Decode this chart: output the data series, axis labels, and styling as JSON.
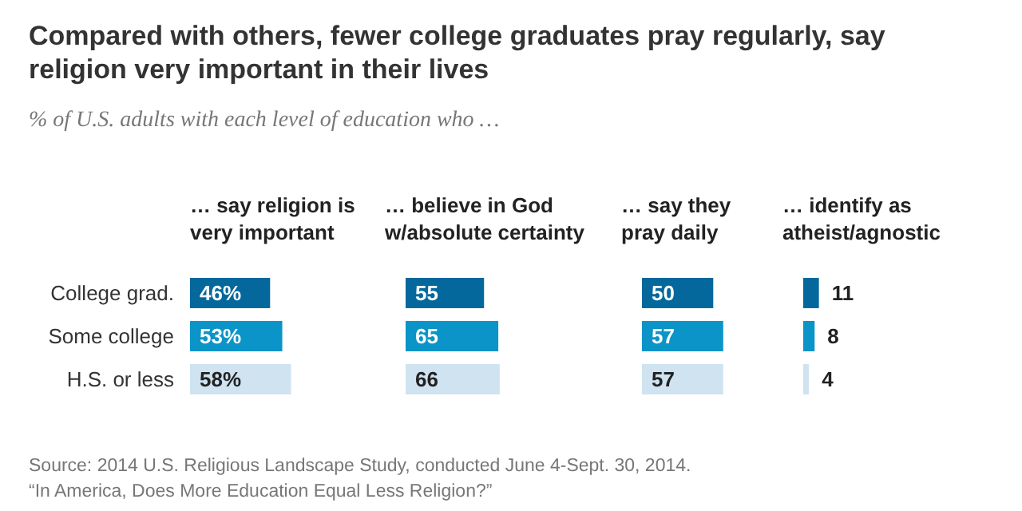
{
  "chart_data": [
    {
      "type": "bar",
      "orientation": "horizontal",
      "title": "Compared with others, fewer college graduates pray regularly, say religion very important in their lives",
      "subtitle": "% of U.S. adults with each level of education who …",
      "xlabel": "… say religion is very important",
      "categories": [
        "College grad.",
        "Some college",
        "H.S. or less"
      ],
      "values": [
        46,
        53,
        58
      ],
      "value_labels": [
        "46%",
        "53%",
        "58%"
      ],
      "colors": [
        "#04689c",
        "#0b94c7",
        "#cfe3f1"
      ],
      "annotations": [
        "Source: 2014 U.S. Religious Landscape Study, conducted June 4-Sept. 30, 2014.",
        "“In America, Does More Education Equal Less Religion?”"
      ]
    },
    {
      "type": "bar",
      "orientation": "horizontal",
      "xlabel": "… believe in God w/absolute certainty",
      "categories": [
        null,
        null,
        null
      ],
      "values": [
        55,
        65,
        66
      ],
      "data_labels": true,
      "colors": [
        "#04689c",
        "#0b94c7",
        "#cfe3f1"
      ]
    },
    {
      "type": "bar",
      "orientation": "horizontal",
      "xlabel": "… say they pray daily",
      "categories": [
        null,
        null,
        null
      ],
      "values": [
        50,
        57,
        57
      ],
      "data_labels": true,
      "colors": [
        "#04689c",
        "#0b94c7",
        "#cfe3f1"
      ]
    },
    {
      "type": "bar",
      "orientation": "horizontal",
      "xlabel": "… identify as atheist/agnostic",
      "categories": [
        null,
        null,
        null
      ],
      "values": [
        11,
        8,
        4
      ],
      "data_labels": true,
      "colors": [
        "#04689c",
        "#0b94c7",
        "#cfe3f1"
      ]
    }
  ]
}
